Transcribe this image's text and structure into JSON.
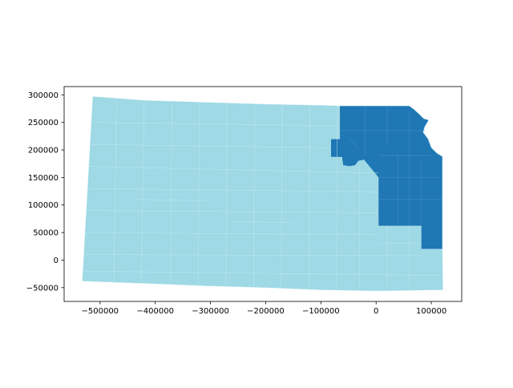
{
  "chart_data": {
    "type": "choropleth",
    "x_ticks": [
      -500000,
      -400000,
      -300000,
      -200000,
      -100000,
      0,
      100000
    ],
    "x_tick_labels": [
      "−500000",
      "−400000",
      "−300000",
      "−200000",
      "−100000",
      "0",
      "100000"
    ],
    "y_ticks": [
      -50000,
      0,
      50000,
      100000,
      150000,
      200000,
      250000,
      300000
    ],
    "y_tick_labels": [
      "−50000",
      "0",
      "50000",
      "100000",
      "150000",
      "200000",
      "250000",
      "300000"
    ],
    "xlim": [
      -565000,
      155000
    ],
    "ylim": [
      -75000,
      315000
    ],
    "colors": {
      "base": "#9ed9e5",
      "highlight": "#1f77b4",
      "border": "#c6ebf1"
    },
    "regions": [
      {
        "id": "state-base",
        "class": "base",
        "outline": [
          [
            -513000,
            297000
          ],
          [
            -420000,
            290000
          ],
          [
            -300000,
            286000
          ],
          [
            -200000,
            283000
          ],
          [
            -100000,
            281000
          ],
          [
            -66000,
            280000
          ],
          [
            60000,
            280000
          ],
          [
            68000,
            274000
          ],
          [
            78000,
            265000
          ],
          [
            86000,
            257000
          ],
          [
            95000,
            254000
          ],
          [
            88000,
            242000
          ],
          [
            85000,
            232000
          ],
          [
            94000,
            220000
          ],
          [
            100000,
            204000
          ],
          [
            110000,
            194000
          ],
          [
            120000,
            188000
          ],
          [
            120000,
            20000
          ],
          [
            121000,
            -54000
          ],
          [
            0,
            -56000
          ],
          [
            -100000,
            -54000
          ],
          [
            -200000,
            -50000
          ],
          [
            -300000,
            -47000
          ],
          [
            -400000,
            -43000
          ],
          [
            -532000,
            -38000
          ]
        ]
      },
      {
        "id": "northeast-region",
        "class": "highlight",
        "outline": [
          [
            -66000,
            280000
          ],
          [
            60000,
            280000
          ],
          [
            68000,
            274000
          ],
          [
            78000,
            265000
          ],
          [
            86000,
            257000
          ],
          [
            95000,
            254000
          ],
          [
            88000,
            242000
          ],
          [
            85000,
            232000
          ],
          [
            94000,
            220000
          ],
          [
            100000,
            204000
          ],
          [
            110000,
            194000
          ],
          [
            120000,
            188000
          ],
          [
            120000,
            20000
          ],
          [
            82000,
            20000
          ],
          [
            82000,
            62000
          ],
          [
            4000,
            62000
          ],
          [
            4000,
            150000
          ],
          [
            -22000,
            182000
          ],
          [
            -32000,
            180000
          ],
          [
            -38000,
            172000
          ],
          [
            -48000,
            170000
          ],
          [
            -60000,
            172000
          ],
          [
            -62000,
            187000
          ],
          [
            -82000,
            187000
          ],
          [
            -82000,
            220000
          ],
          [
            -66000,
            220000
          ]
        ]
      }
    ],
    "county_lines": [
      [
        [
          -470000,
          293000
        ],
        [
          -475000,
          -41000
        ]
      ],
      [
        [
          -420000,
          291000
        ],
        [
          -425000,
          -42000
        ]
      ],
      [
        [
          -370000,
          289000
        ],
        [
          -372000,
          -44000
        ]
      ],
      [
        [
          -320000,
          287000
        ],
        [
          -322000,
          -46000
        ]
      ],
      [
        [
          -270000,
          285000
        ],
        [
          -272000,
          -47000
        ]
      ],
      [
        [
          -220000,
          283000
        ],
        [
          -222000,
          -49000
        ]
      ],
      [
        [
          -170000,
          282000
        ],
        [
          -172000,
          -51000
        ]
      ],
      [
        [
          -120000,
          281000
        ],
        [
          -122000,
          -52000
        ]
      ],
      [
        [
          -70000,
          280000
        ],
        [
          -72000,
          -53000
        ]
      ],
      [
        [
          -30000,
          170000
        ],
        [
          -30000,
          -55000
        ]
      ],
      [
        [
          20000,
          62000
        ],
        [
          20000,
          -55000
        ]
      ],
      [
        [
          60000,
          62000
        ],
        [
          60000,
          -55000
        ]
      ],
      [
        [
          -515000,
          250000
        ],
        [
          -66000,
          244000
        ]
      ],
      [
        [
          -518000,
          210000
        ],
        [
          -82000,
          204000
        ]
      ],
      [
        [
          -520000,
          170000
        ],
        [
          4000,
          158000
        ]
      ],
      [
        [
          -523000,
          130000
        ],
        [
          4000,
          124000
        ]
      ],
      [
        [
          -525000,
          90000
        ],
        [
          4000,
          86000
        ]
      ],
      [
        [
          -527000,
          50000
        ],
        [
          4000,
          46000
        ]
      ],
      [
        [
          -529000,
          10000
        ],
        [
          82000,
          8000
        ]
      ],
      [
        [
          -531000,
          -20000
        ],
        [
          120000,
          -28000
        ]
      ],
      [
        [
          4000,
          30000
        ],
        [
          82000,
          30000
        ]
      ],
      [
        [
          -440000,
          110000
        ],
        [
          -300000,
          108000
        ]
      ],
      [
        [
          -260000,
          70000
        ],
        [
          -150000,
          68000
        ]
      ]
    ],
    "highlight_lines": [
      [
        [
          -20000,
          280000
        ],
        [
          -20000,
          190000
        ]
      ],
      [
        [
          20000,
          280000
        ],
        [
          20000,
          210000
        ]
      ],
      [
        [
          60000,
          270000
        ],
        [
          60000,
          62000
        ]
      ],
      [
        [
          -66000,
          235000
        ],
        [
          90000,
          235000
        ]
      ],
      [
        [
          4000,
          190000
        ],
        [
          100000,
          190000
        ]
      ],
      [
        [
          4000,
          150000
        ],
        [
          115000,
          150000
        ]
      ],
      [
        [
          40000,
          190000
        ],
        [
          40000,
          62000
        ]
      ],
      [
        [
          4000,
          110000
        ],
        [
          120000,
          110000
        ]
      ],
      [
        [
          82000,
          180000
        ],
        [
          82000,
          20000
        ]
      ],
      [
        [
          -48000,
          220000
        ],
        [
          -30000,
          200000
        ]
      ]
    ]
  }
}
